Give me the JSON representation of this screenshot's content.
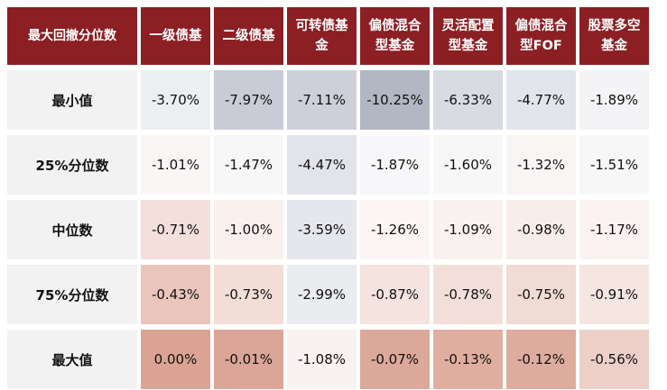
{
  "corner_header": "最大回撤分位数",
  "columns": [
    [
      "一级债基"
    ],
    [
      "二级债基"
    ],
    [
      "可转债基",
      "金"
    ],
    [
      "偏债混合",
      "型基金"
    ],
    [
      "灵活配置",
      "型基金"
    ],
    [
      "偏债混合",
      "型FOF"
    ],
    [
      "股票多空",
      "基金"
    ]
  ],
  "rows": [
    {
      "label": "最小值",
      "values": [
        "-3.70%",
        "-7.97%",
        "-7.11%",
        "-10.25%",
        "-6.33%",
        "-4.77%",
        "-1.89%"
      ],
      "colors": [
        "#eceef2",
        "#c9ccd6",
        "#cdd0d9",
        "#b2b7c4",
        "#d9dbe2",
        "#e3e5ea",
        "#f4f4f6"
      ]
    },
    {
      "label": "25%分位数",
      "values": [
        "-1.01%",
        "-1.47%",
        "-4.47%",
        "-1.87%",
        "-1.60%",
        "-1.32%",
        "-1.51%"
      ],
      "colors": [
        "#fbf6f6",
        "#f8f7f8",
        "#e2e4ea",
        "#f7f6f8",
        "#f8f7f8",
        "#faf5f5",
        "#f8f7f8"
      ]
    },
    {
      "label": "中位数",
      "values": [
        "-0.71%",
        "-1.00%",
        "-3.59%",
        "-1.26%",
        "-1.09%",
        "-0.98%",
        "-1.17%"
      ],
      "colors": [
        "#f3dfdb",
        "#faf1ef",
        "#e6e7ec",
        "#fbf5f4",
        "#faf2f0",
        "#f8ede9",
        "#faf3f2"
      ]
    },
    {
      "label": "75%分位数",
      "values": [
        "-0.43%",
        "-0.73%",
        "-2.99%",
        "-0.87%",
        "-0.78%",
        "-0.75%",
        "-0.91%"
      ],
      "colors": [
        "#e9c5bb",
        "#f2ddd7",
        "#ebecf0",
        "#f4e3de",
        "#f3dfda",
        "#f1dbd5",
        "#f5e6e2"
      ]
    },
    {
      "label": "最大值",
      "values": [
        "0.00%",
        "-0.01%",
        "-1.08%",
        "-0.07%",
        "-0.13%",
        "-0.12%",
        "-0.56%"
      ],
      "colors": [
        "#dba393",
        "#dba597",
        "#faf2f0",
        "#dca89a",
        "#e0ae9f",
        "#deac9f",
        "#ecd0c8"
      ]
    }
  ]
}
